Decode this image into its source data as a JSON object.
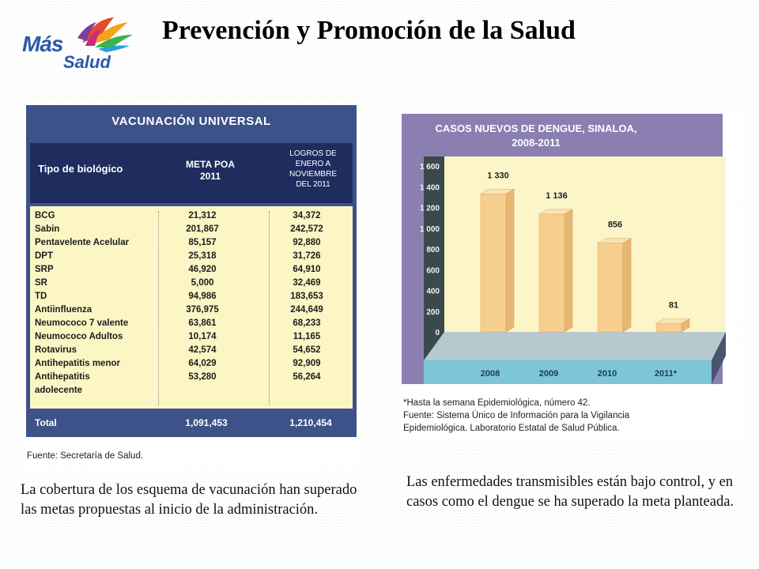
{
  "header": {
    "logo_mas": "Más",
    "logo_salud": "Salud",
    "title": "Prevención y Promoción de la Salud"
  },
  "vaccination_table": {
    "title": "VACUNACIÓN UNIVERSAL",
    "columns": [
      "Tipo de biológico",
      "META POA 2011",
      "LOGROS DE ENERO A NOVIEMBRE DEL 2011"
    ],
    "rows": [
      {
        "name": "BCG",
        "meta": "21,312",
        "logros": "34,372"
      },
      {
        "name": "Sabin",
        "meta": "201,867",
        "logros": "242,572"
      },
      {
        "name": "Pentavelente Acelular",
        "meta": "85,157",
        "logros": "92,880"
      },
      {
        "name": "DPT",
        "meta": "25,318",
        "logros": "31,726"
      },
      {
        "name": "SRP",
        "meta": "46,920",
        "logros": "64,910"
      },
      {
        "name": "SR",
        "meta": "5,000",
        "logros": "32,469"
      },
      {
        "name": "TD",
        "meta": "94,986",
        "logros": "183,653"
      },
      {
        "name": "Antiinfluenza",
        "meta": "376,975",
        "logros": "244,649"
      },
      {
        "name": "Neumococo 7 valente",
        "meta": "63,861",
        "logros": "68,233"
      },
      {
        "name": "Neumococo Adultos",
        "meta": "10,174",
        "logros": "11,165"
      },
      {
        "name": "Rotavirus",
        "meta": "42,574",
        "logros": "54,652"
      },
      {
        "name": "Antihepatitis menor",
        "meta": "64,029",
        "logros": "92,909"
      },
      {
        "name": "Antihepatitis",
        "meta": "53,280",
        "logros": "56,264"
      },
      {
        "name": "adolecente",
        "meta": "",
        "logros": ""
      }
    ],
    "total": {
      "label": "Total",
      "meta": "1,091,453",
      "logros": "1,210,454"
    },
    "source": "Fuente: Secretaría de Salud."
  },
  "chart_data": {
    "type": "bar",
    "title_line1": "CASOS NUEVOS DE DENGUE, SINALOA,",
    "title_line2": "2008-2011",
    "categories": [
      "2008",
      "2009",
      "2010",
      "2011*"
    ],
    "values": [
      1330,
      1136,
      856,
      81
    ],
    "value_labels": [
      "1 330",
      "1 136",
      "856",
      "81"
    ],
    "y_ticks": [
      "1 600",
      "1 400",
      "1 200",
      "1 000",
      "800",
      "600",
      "400",
      "200",
      "0"
    ],
    "ylim": [
      0,
      1600
    ],
    "bar_color": "#f6cf8e",
    "notes": [
      "*Hasta la semana Epidemiológica, número 42.",
      "Fuente: Sistema Único de Información para la Vigilancia",
      "Epidemiológica. Laboratorio Estatal de Salud Pública."
    ]
  },
  "paragraphs": {
    "left": "La cobertura de los esquema de vacunación han superado las metas propuestas al inicio de la administración.",
    "right": "Las enfermedades transmisibles están bajo control, y en casos como el dengue se ha superado la meta planteada."
  }
}
